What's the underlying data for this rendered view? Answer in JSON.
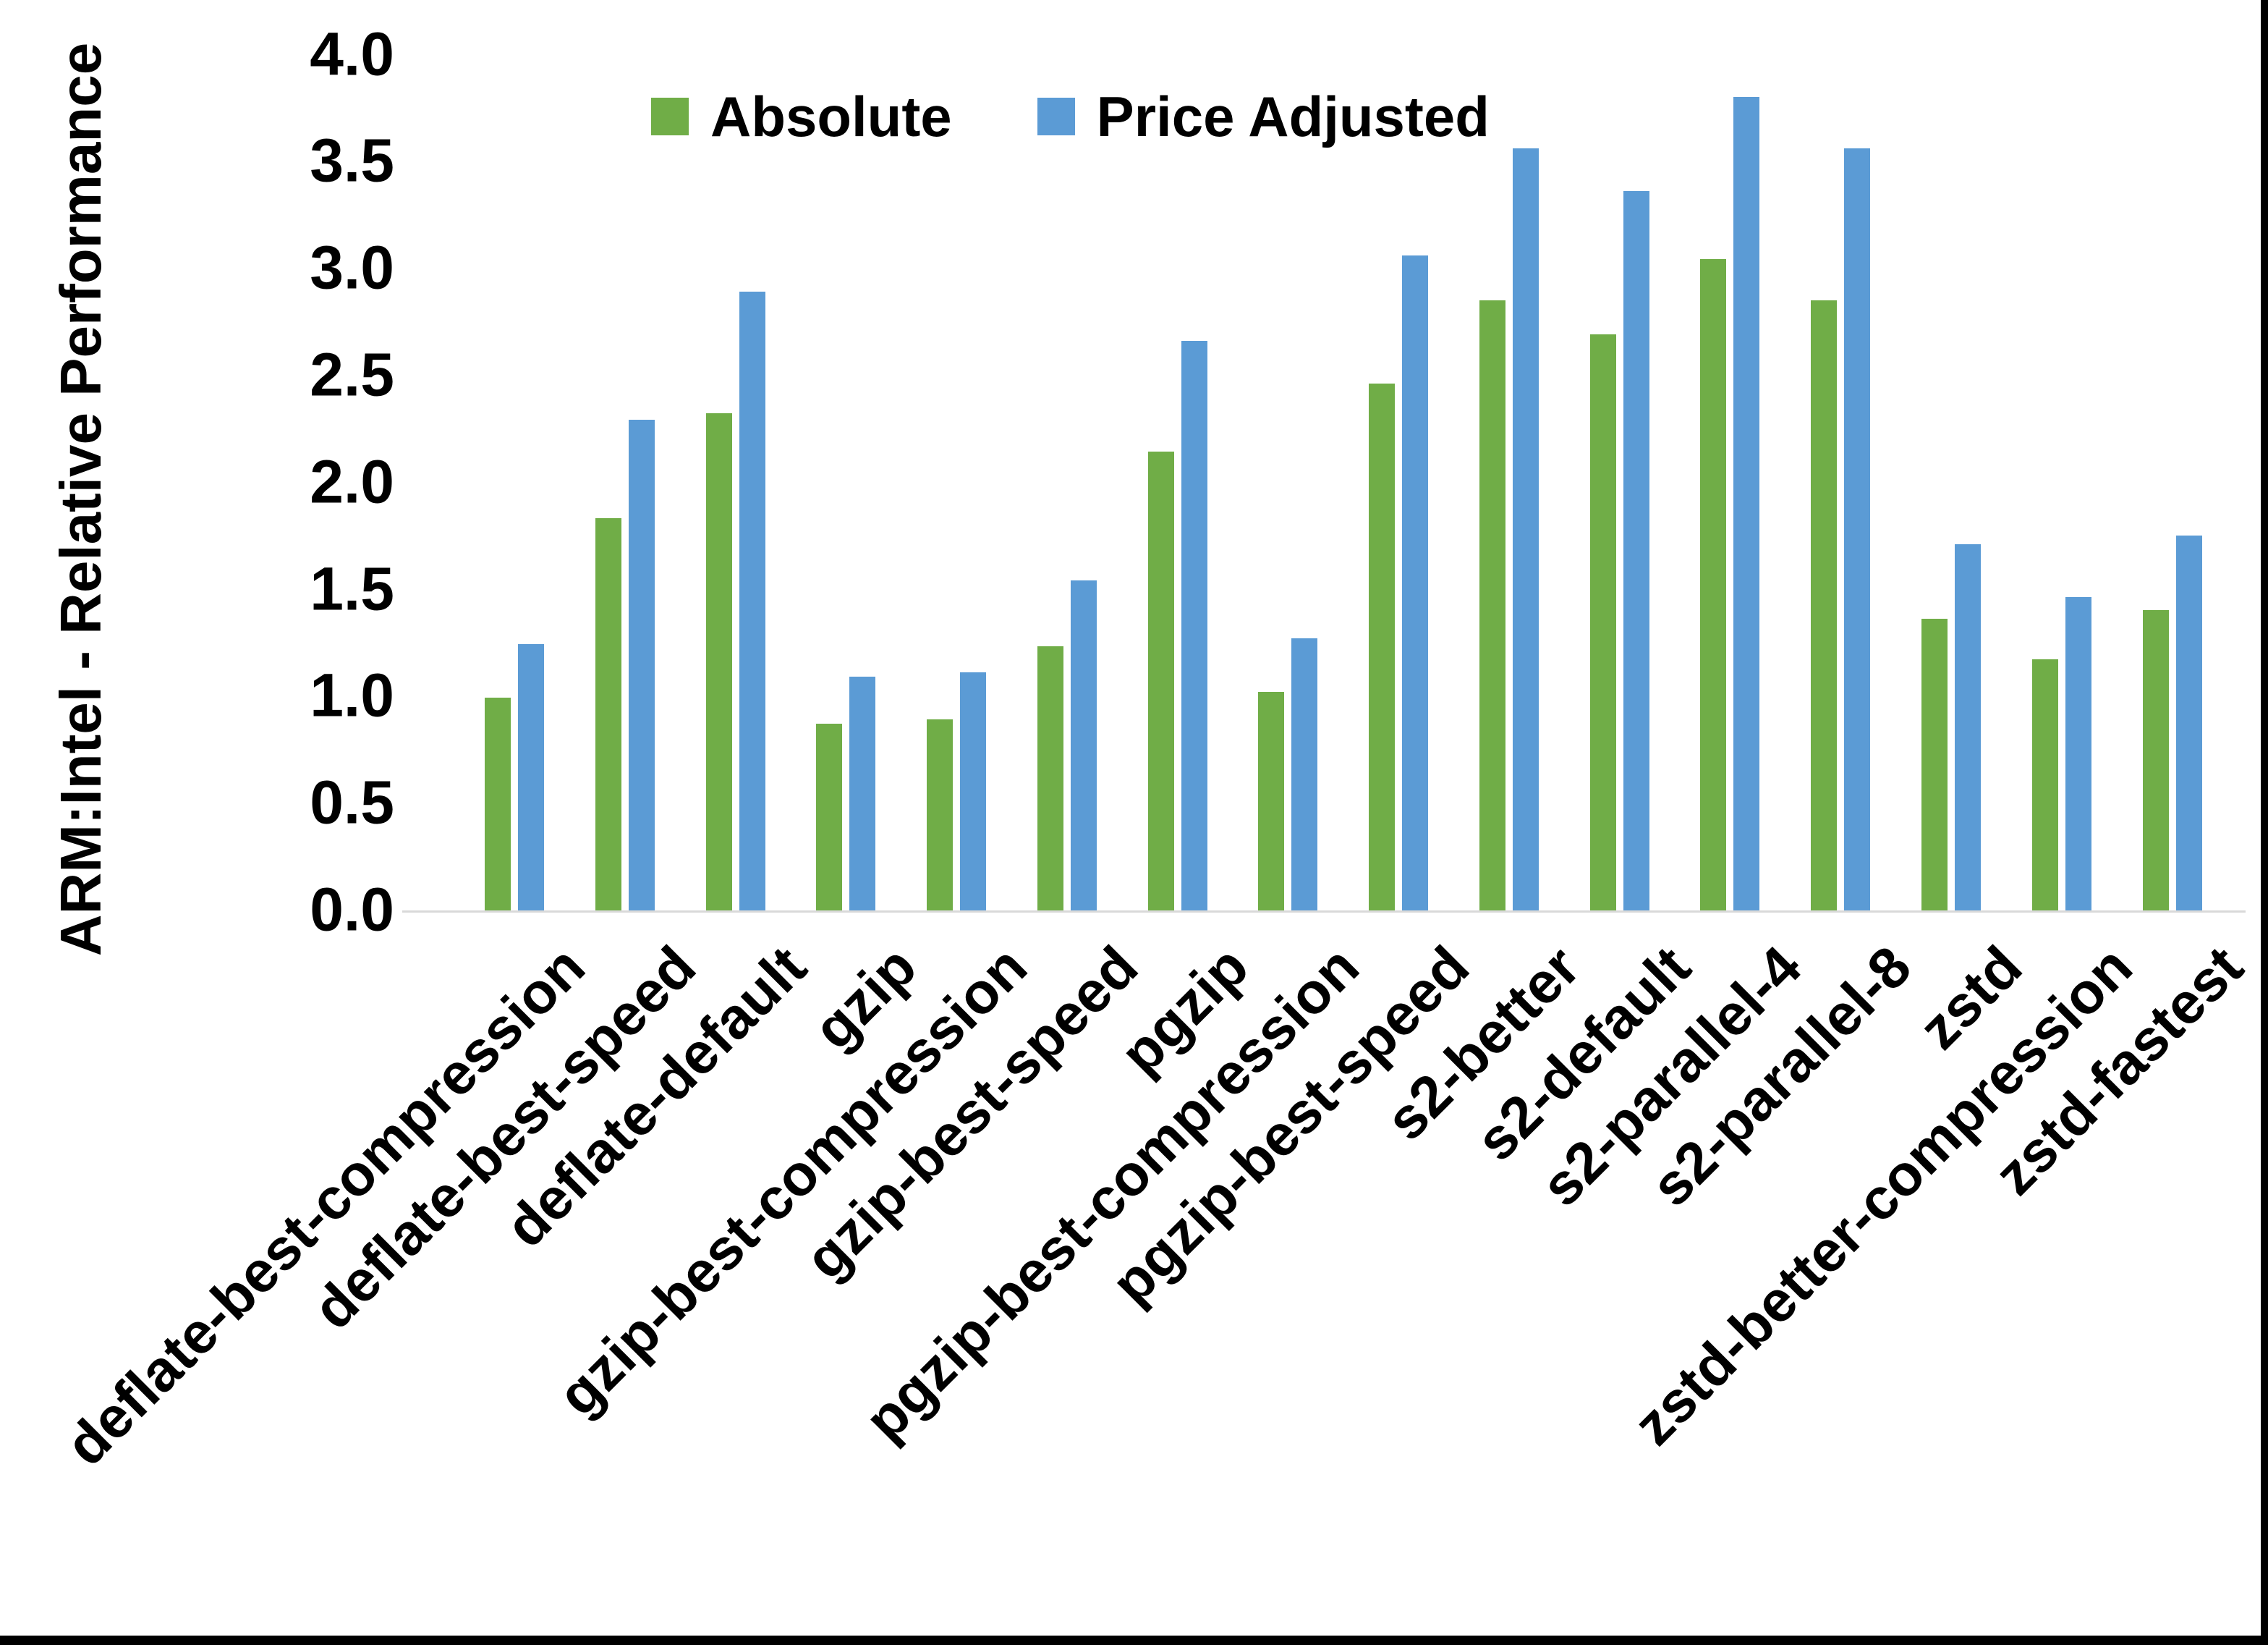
{
  "chart_data": {
    "type": "bar",
    "title": "",
    "xlabel": "",
    "ylabel": "ARM:Intel - Relative Performance",
    "ylim": [
      0.0,
      4.0
    ],
    "y_tick_labels": [
      "0.0",
      "0.5",
      "1.0",
      "1.5",
      "2.0",
      "2.5",
      "3.0",
      "3.5",
      "4.0"
    ],
    "grid": false,
    "legend_position": "top-center-inside",
    "categories": [
      "deflate-best-compression",
      "deflate-best-speed",
      "deflate-default",
      "gzip",
      "gzip-best-compression",
      "gzip-best-speed",
      "pgzip",
      "pgzip-best-compression",
      "pgzip-best-speed",
      "s2-better",
      "s2-default",
      "s2-parallel-4",
      "s2-parallel-8",
      "zstd",
      "zstd-better-compression",
      "zstd-fastest"
    ],
    "series": [
      {
        "name": "Absolute",
        "color": "#70AD47",
        "values": [
          1.0,
          1.84,
          2.33,
          0.88,
          0.9,
          1.24,
          2.15,
          1.03,
          2.47,
          2.86,
          2.7,
          3.05,
          2.86,
          1.37,
          1.18,
          1.41
        ]
      },
      {
        "name": "Price Adjusted",
        "color": "#5B9BD5",
        "values": [
          1.25,
          2.3,
          2.9,
          1.1,
          1.12,
          1.55,
          2.67,
          1.28,
          3.07,
          3.57,
          3.37,
          3.81,
          3.57,
          1.72,
          1.47,
          1.76
        ]
      }
    ],
    "axis_line_color": "#D9D9D9",
    "text_color": "#000000",
    "frame_color": "#000000"
  }
}
